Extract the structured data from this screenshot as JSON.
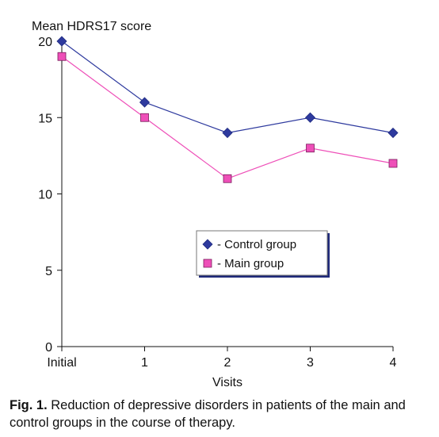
{
  "chart_data": {
    "type": "line",
    "ylabel": "Mean HDRS17 score",
    "xlabel": "Visits",
    "categories": [
      "Initial",
      "1",
      "2",
      "3",
      "4"
    ],
    "ylim": [
      0,
      20
    ],
    "yticks": [
      0,
      5,
      10,
      15,
      20
    ],
    "grid": false,
    "legend_placement": "center-right",
    "series": [
      {
        "name": "- Control group",
        "marker": "diamond",
        "color": "#2e3a9e",
        "values": [
          20,
          16,
          14,
          15,
          14
        ]
      },
      {
        "name": "- Main group",
        "marker": "square",
        "color": "#ee4fb8",
        "values": [
          19,
          15,
          11,
          13,
          12
        ]
      }
    ]
  },
  "caption": {
    "label": "Fig. 1.",
    "text": " Reduction of depressive disorders in patients of the main and control groups in the course of therapy."
  }
}
